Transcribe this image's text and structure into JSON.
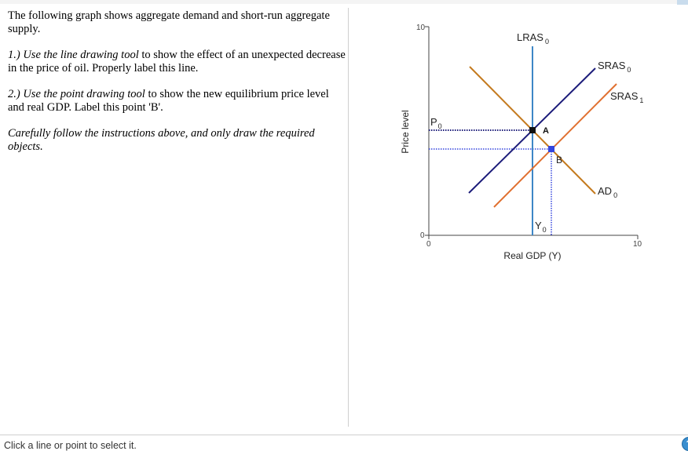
{
  "question": {
    "intro": "The following graph shows aggregate demand and short-run aggregate supply.",
    "step1_italic": "1.) Use the line drawing tool",
    "step1_rest": " to show the effect of an unexpected decrease in the price of oil. Properly label this line.",
    "step2_italic": "2.) Use the point drawing tool",
    "step2_rest": " to show the new equilibrium price level and real GDP. Label this point 'B'.",
    "note": "Carefully follow the instructions above, and only draw the required objects."
  },
  "graph": {
    "ylabel": "Price level",
    "xlabel": "Real GDP (Y)",
    "y_max_tick": "10",
    "y_min_tick": "0",
    "x_min_tick": "0",
    "x_max_tick": "10",
    "lras_label": "LRAS",
    "lras_sub": "0",
    "sras0_label": "SRAS",
    "sras0_sub": "0",
    "sras1_label": "SRAS",
    "sras1_sub": "1",
    "ad_label": "AD",
    "ad_sub": "0",
    "p_label": "P",
    "p_sub": "0",
    "y_label": "Y",
    "y_sub": "0",
    "point_a": "A",
    "point_b": "B",
    "colors": {
      "lras": "#3d86c6",
      "sras0": "#1c1c7a",
      "sras1": "#e07030",
      "ad": "#c47a1e",
      "point_b": "#3344dd"
    }
  },
  "status": {
    "text": "Click a line or point to select it."
  },
  "help_icon": "question-icon"
}
